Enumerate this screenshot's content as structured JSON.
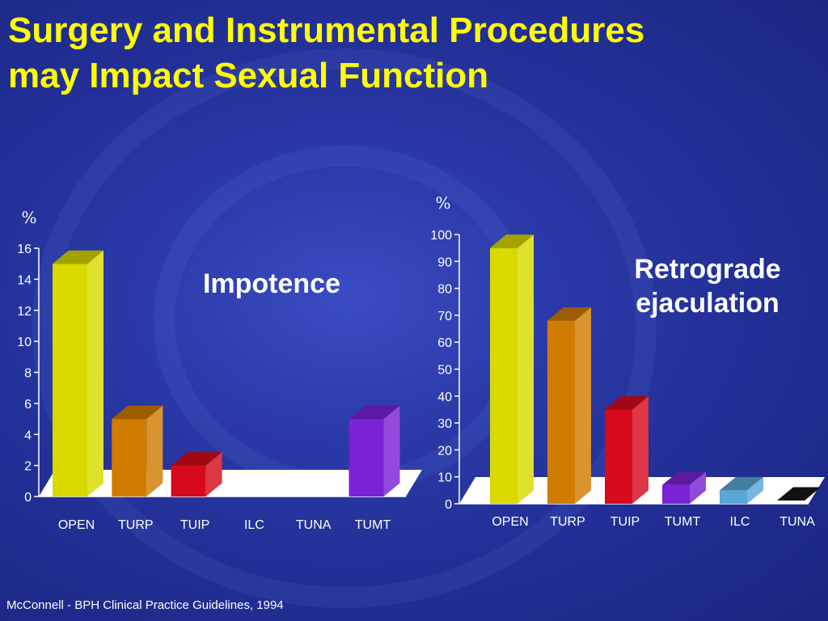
{
  "title": {
    "line1": "Surgery and Instrumental Procedures",
    "line2": "may Impact Sexual Function"
  },
  "citation": "McConnell - BPH Clinical Practice Guidelines, 1994",
  "colors": {
    "title": "#ffff00",
    "background": "#2b3aa8",
    "text": "#ffffff"
  },
  "chart_data": [
    {
      "type": "bar",
      "label": "Impotence",
      "ylabel": "%",
      "ylim": [
        0,
        16
      ],
      "yticks": [
        "0",
        "2",
        "4",
        "6",
        "8",
        "10",
        "12",
        "14",
        "16"
      ],
      "categories": [
        "OPEN",
        "TURP",
        "TUIP",
        "ILC",
        "TUNA",
        "TUMT"
      ],
      "values": [
        15,
        5,
        2,
        0,
        0,
        5
      ],
      "bar_colors": [
        "#d9d900",
        "#d07c00",
        "#d60a1c",
        null,
        null,
        "#7a22d6"
      ],
      "grid": false
    },
    {
      "type": "bar",
      "label_line1": "Retrograde",
      "label_line2": "ejaculation",
      "ylabel": "%",
      "ylim": [
        0,
        100
      ],
      "yticks": [
        "0",
        "10",
        "20",
        "30",
        "40",
        "50",
        "60",
        "70",
        "80",
        "90",
        "100"
      ],
      "categories": [
        "OPEN",
        "TURP",
        "TUIP",
        "TUMT",
        "ILC",
        "TUNA"
      ],
      "values": [
        95,
        68,
        35,
        7,
        5,
        0
      ],
      "bar_colors": [
        "#d9d900",
        "#d07c00",
        "#d60a1c",
        "#7a22d6",
        "#5aa6d8",
        "#111111"
      ],
      "grid": false
    }
  ]
}
